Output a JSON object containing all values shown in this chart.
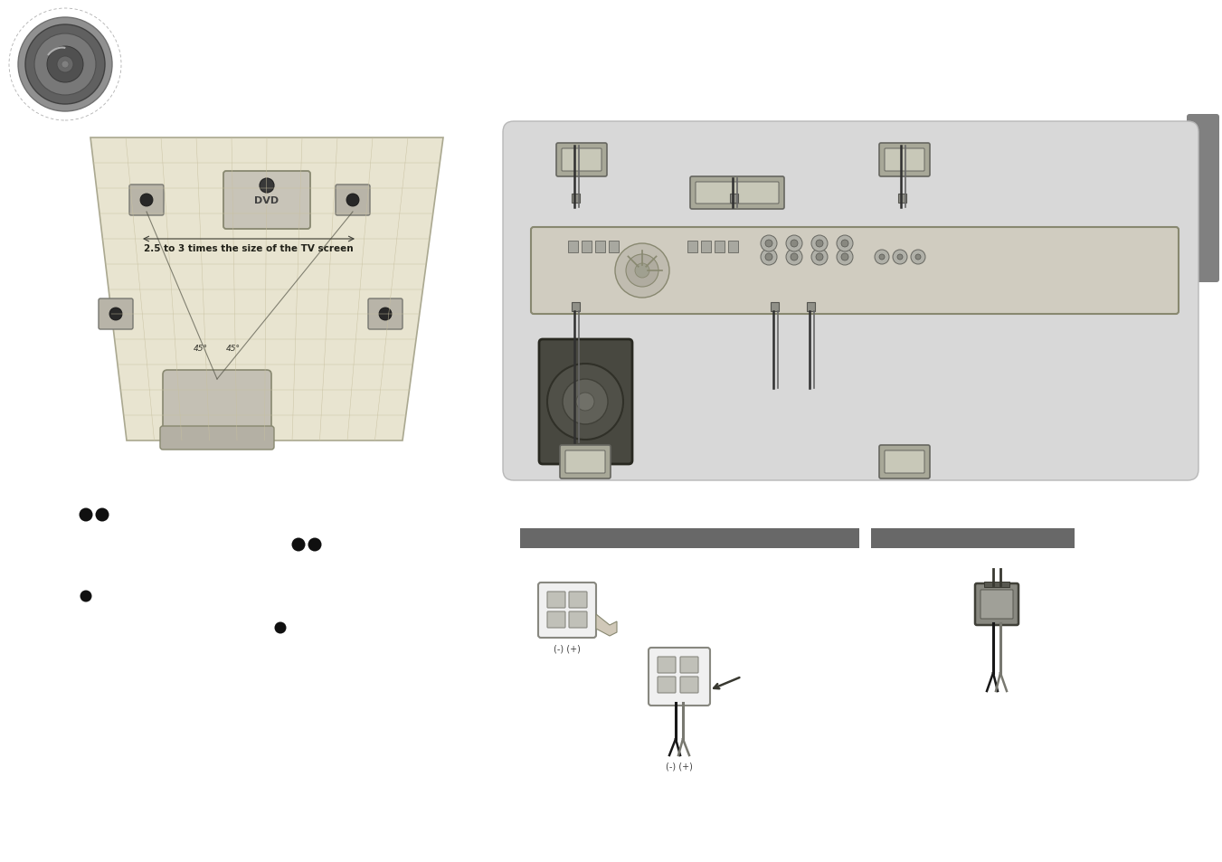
{
  "bg_color": "#ffffff",
  "room_bg": "#e8e4d0",
  "room_line": "#c8c0a0",
  "room_edge": "#aaa890",
  "right_bg": "#d8d8d8",
  "receiver_fill": "#d0ccc0",
  "receiver_edge": "#888870",
  "speaker_fill": "#a8a898",
  "speaker_edge": "#666660",
  "speaker_inner": "#c8c8b8",
  "sub_fill": "#484840",
  "sub_edge": "#282820",
  "wire_color": "#303030",
  "tab_color": "#808080",
  "bar_color": "#686868",
  "term_fill": "#f0f0f0",
  "term_edge": "#888880",
  "btn_fill": "#c0c0b8",
  "plug_fill": "#888880",
  "bullet_color": "#101010"
}
